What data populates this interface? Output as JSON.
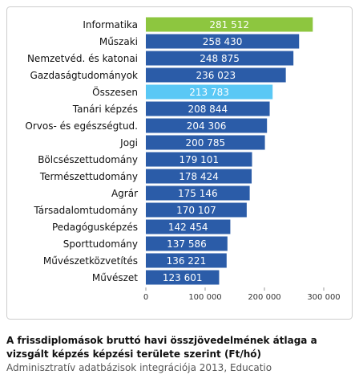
{
  "chart_data": {
    "type": "bar",
    "orientation": "horizontal",
    "categories": [
      "Informatika",
      "Műszaki",
      "Nemzetvéd. és katonai",
      "Gazdaságtudományok",
      "Összesen",
      "Tanári képzés",
      "Orvos- és egészségtud.",
      "Jogi",
      "Bölcsészettudomány",
      "Természettudomány",
      "Agrár",
      "Társadalomtudomány",
      "Pedagógusképzés",
      "Sporttudomány",
      "Művészetközvetítés",
      "Művészet"
    ],
    "values": [
      281512,
      258430,
      248875,
      236023,
      213783,
      208844,
      204306,
      200785,
      179101,
      178424,
      175146,
      170107,
      142454,
      137586,
      136221,
      123601
    ],
    "value_labels": [
      "281 512",
      "258 430",
      "248 875",
      "236 023",
      "213 783",
      "208 844",
      "204 306",
      "200 785",
      "179 101",
      "178 424",
      "175 146",
      "170 107",
      "142 454",
      "137 586",
      "136 221",
      "123 601"
    ],
    "colors": [
      "#8dc63f",
      "#2b5ca8",
      "#2b5ca8",
      "#2b5ca8",
      "#5ac8f5",
      "#2b5ca8",
      "#2b5ca8",
      "#2b5ca8",
      "#2b5ca8",
      "#2b5ca8",
      "#2b5ca8",
      "#2b5ca8",
      "#2b5ca8",
      "#2b5ca8",
      "#2b5ca8",
      "#2b5ca8"
    ],
    "xlim": [
      0,
      300000
    ],
    "xticks": [
      0,
      {
        "value": 100000,
        "label": "100 000"
      },
      {
        "value": 200000,
        "label": "200 000"
      },
      {
        "value": 300000,
        "label": "300 000"
      }
    ],
    "grid": false,
    "caption": "A frissdiplomások bruttó havi összjövedelmének átlaga a vizsgált képzés képzési területe szerint (Ft/hó)",
    "source": "Adminisztratív adatbázisok integrációja 2013, Educatio"
  }
}
